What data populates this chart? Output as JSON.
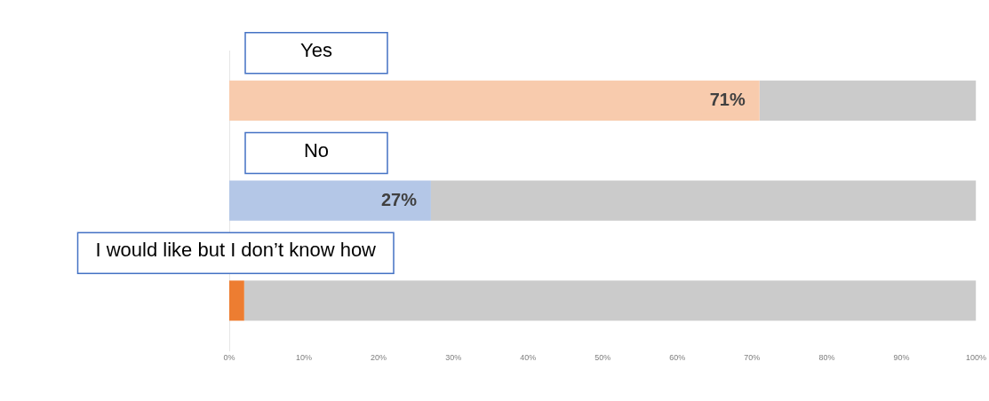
{
  "chart_data": {
    "type": "bar",
    "orientation": "horizontal",
    "stacked": true,
    "legend": false,
    "grid": false,
    "categories": [
      "Yes",
      "No",
      "I would like but I don’t know how"
    ],
    "series": [
      {
        "colors": [
          "#f8cbad",
          "#b4c7e7",
          "#ed7d31"
        ],
        "values": [
          71,
          27,
          2
        ],
        "value_labels": [
          "71%",
          "27%",
          null
        ]
      },
      {
        "color": "#cbcbcb",
        "values": [
          29,
          73,
          98
        ]
      }
    ],
    "xlim": [
      0,
      100
    ],
    "xticks": [
      {
        "value": 0,
        "label": "0%"
      },
      {
        "value": 10,
        "label": "10%"
      },
      {
        "value": 20,
        "label": "20%"
      },
      {
        "value": 30,
        "label": "30%"
      },
      {
        "value": 40,
        "label": "40%"
      },
      {
        "value": 50,
        "label": "50%"
      },
      {
        "value": 60,
        "label": "60%"
      },
      {
        "value": 70,
        "label": "70%"
      },
      {
        "value": 80,
        "label": "80%"
      },
      {
        "value": 90,
        "label": "90%"
      },
      {
        "value": 100,
        "label": "100%"
      }
    ]
  }
}
